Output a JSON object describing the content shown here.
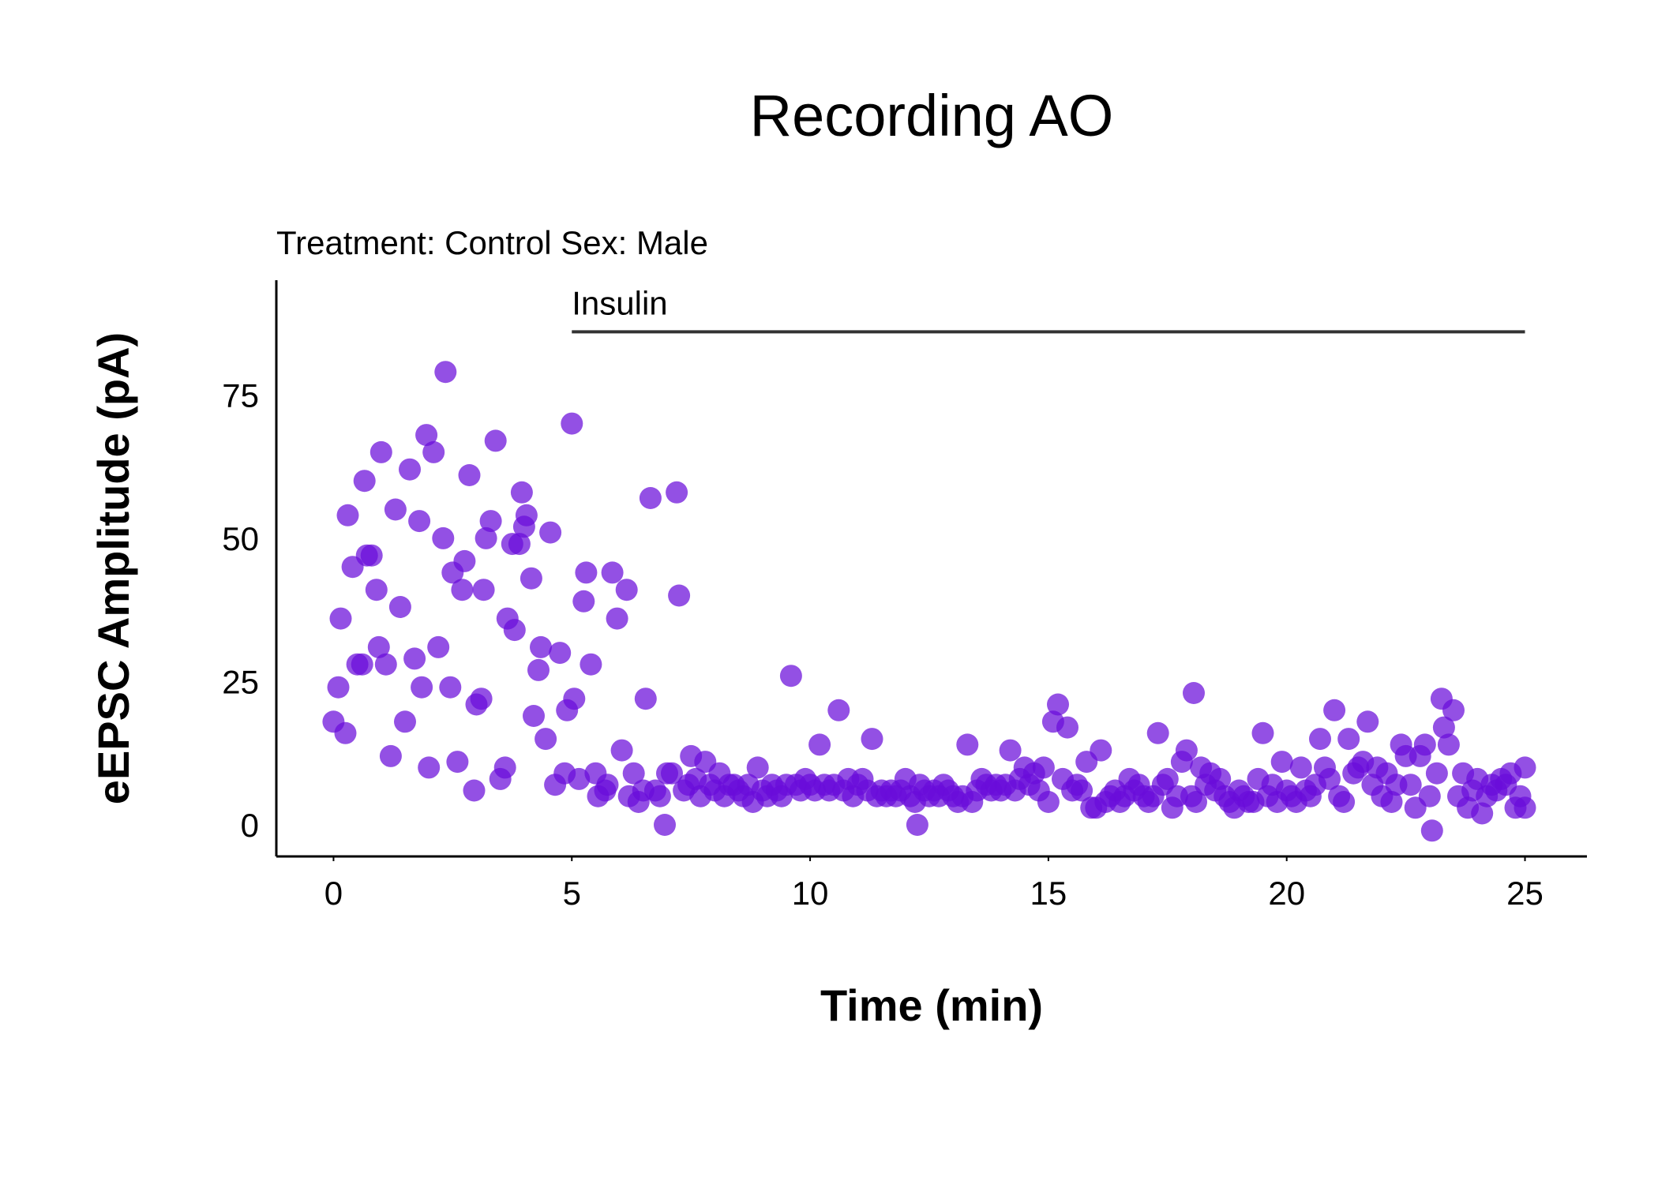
{
  "chart_data": {
    "type": "scatter",
    "title": "Recording AO",
    "subtitle": "Treatment: Control  Sex: Male",
    "xlabel": "Time (min)",
    "ylabel": "eEPSC Amplitude (pA)",
    "xlim": [
      -1.2,
      26.3
    ],
    "ylim": [
      -5.5,
      95
    ],
    "xticks": [
      0,
      5,
      10,
      15,
      20,
      25
    ],
    "yticks": [
      0,
      25,
      50,
      75
    ],
    "grid": false,
    "annotation": {
      "label": "Insulin",
      "x_start": 5,
      "x_end": 25,
      "y": 86
    },
    "point_color": "#6a0dd9",
    "points": [
      [
        0.0,
        18
      ],
      [
        0.1,
        24
      ],
      [
        0.15,
        36
      ],
      [
        0.25,
        16
      ],
      [
        0.3,
        54
      ],
      [
        0.4,
        45
      ],
      [
        0.5,
        28
      ],
      [
        0.6,
        28
      ],
      [
        0.65,
        60
      ],
      [
        0.7,
        47
      ],
      [
        0.8,
        47
      ],
      [
        0.9,
        41
      ],
      [
        0.95,
        31
      ],
      [
        1.0,
        65
      ],
      [
        1.1,
        28
      ],
      [
        1.2,
        12
      ],
      [
        1.3,
        55
      ],
      [
        1.4,
        38
      ],
      [
        1.5,
        18
      ],
      [
        1.6,
        62
      ],
      [
        1.7,
        29
      ],
      [
        1.8,
        53
      ],
      [
        1.85,
        24
      ],
      [
        1.95,
        68
      ],
      [
        2.0,
        10
      ],
      [
        2.1,
        65
      ],
      [
        2.2,
        31
      ],
      [
        2.3,
        50
      ],
      [
        2.35,
        79
      ],
      [
        2.45,
        24
      ],
      [
        2.5,
        44
      ],
      [
        2.6,
        11
      ],
      [
        2.7,
        41
      ],
      [
        2.75,
        46
      ],
      [
        2.85,
        61
      ],
      [
        2.95,
        6
      ],
      [
        3.0,
        21
      ],
      [
        3.1,
        22
      ],
      [
        3.15,
        41
      ],
      [
        3.2,
        50
      ],
      [
        3.3,
        53
      ],
      [
        3.4,
        67
      ],
      [
        3.5,
        8
      ],
      [
        3.6,
        10
      ],
      [
        3.65,
        36
      ],
      [
        3.75,
        49
      ],
      [
        3.8,
        34
      ],
      [
        3.9,
        49
      ],
      [
        3.95,
        58
      ],
      [
        4.0,
        52
      ],
      [
        4.05,
        54
      ],
      [
        4.15,
        43
      ],
      [
        4.2,
        19
      ],
      [
        4.3,
        27
      ],
      [
        4.35,
        31
      ],
      [
        4.45,
        15
      ],
      [
        4.55,
        51
      ],
      [
        4.65,
        7
      ],
      [
        4.75,
        30
      ],
      [
        4.85,
        9
      ],
      [
        4.9,
        20
      ],
      [
        5.0,
        70
      ],
      [
        5.05,
        22
      ],
      [
        5.15,
        8
      ],
      [
        5.25,
        39
      ],
      [
        5.3,
        44
      ],
      [
        5.4,
        28
      ],
      [
        5.5,
        9
      ],
      [
        5.55,
        5
      ],
      [
        5.7,
        6
      ],
      [
        5.75,
        7
      ],
      [
        5.85,
        44
      ],
      [
        5.95,
        36
      ],
      [
        6.05,
        13
      ],
      [
        6.15,
        41
      ],
      [
        6.2,
        5
      ],
      [
        6.3,
        9
      ],
      [
        6.4,
        4
      ],
      [
        6.5,
        6
      ],
      [
        6.55,
        22
      ],
      [
        6.65,
        57
      ],
      [
        6.75,
        6
      ],
      [
        6.85,
        5
      ],
      [
        6.95,
        0
      ],
      [
        7.0,
        9
      ],
      [
        7.1,
        9
      ],
      [
        7.2,
        58
      ],
      [
        7.25,
        40
      ],
      [
        7.35,
        6
      ],
      [
        7.45,
        7
      ],
      [
        7.5,
        12
      ],
      [
        7.6,
        8
      ],
      [
        7.7,
        5
      ],
      [
        7.8,
        11
      ],
      [
        7.9,
        7
      ],
      [
        8.0,
        6
      ],
      [
        8.1,
        9
      ],
      [
        8.2,
        5
      ],
      [
        8.3,
        7
      ],
      [
        8.4,
        7
      ],
      [
        8.5,
        6
      ],
      [
        8.6,
        5
      ],
      [
        8.7,
        7
      ],
      [
        8.8,
        4
      ],
      [
        8.9,
        10
      ],
      [
        9.0,
        6
      ],
      [
        9.1,
        5
      ],
      [
        9.2,
        7
      ],
      [
        9.3,
        6
      ],
      [
        9.4,
        5
      ],
      [
        9.5,
        7
      ],
      [
        9.6,
        26
      ],
      [
        9.7,
        7
      ],
      [
        9.8,
        6
      ],
      [
        9.9,
        8
      ],
      [
        10.0,
        7
      ],
      [
        10.1,
        6
      ],
      [
        10.2,
        14
      ],
      [
        10.3,
        7
      ],
      [
        10.4,
        6
      ],
      [
        10.5,
        7
      ],
      [
        10.6,
        20
      ],
      [
        10.7,
        6
      ],
      [
        10.8,
        8
      ],
      [
        10.9,
        5
      ],
      [
        11.0,
        7
      ],
      [
        11.1,
        8
      ],
      [
        11.2,
        6
      ],
      [
        11.3,
        15
      ],
      [
        11.4,
        5
      ],
      [
        11.5,
        6
      ],
      [
        11.6,
        5
      ],
      [
        11.7,
        6
      ],
      [
        11.8,
        5
      ],
      [
        11.9,
        6
      ],
      [
        12.0,
        8
      ],
      [
        12.1,
        5
      ],
      [
        12.2,
        4
      ],
      [
        12.25,
        0
      ],
      [
        12.3,
        7
      ],
      [
        12.4,
        6
      ],
      [
        12.5,
        5
      ],
      [
        12.6,
        6
      ],
      [
        12.7,
        5
      ],
      [
        12.8,
        7
      ],
      [
        12.9,
        6
      ],
      [
        13.0,
        5
      ],
      [
        13.1,
        4
      ],
      [
        13.2,
        5
      ],
      [
        13.3,
        14
      ],
      [
        13.4,
        4
      ],
      [
        13.5,
        6
      ],
      [
        13.6,
        8
      ],
      [
        13.7,
        7
      ],
      [
        13.8,
        6
      ],
      [
        13.9,
        7
      ],
      [
        14.0,
        6
      ],
      [
        14.1,
        7
      ],
      [
        14.2,
        13
      ],
      [
        14.3,
        6
      ],
      [
        14.4,
        8
      ],
      [
        14.5,
        10
      ],
      [
        14.6,
        7
      ],
      [
        14.7,
        9
      ],
      [
        14.8,
        6
      ],
      [
        14.9,
        10
      ],
      [
        15.0,
        4
      ],
      [
        15.1,
        18
      ],
      [
        15.2,
        21
      ],
      [
        15.3,
        8
      ],
      [
        15.4,
        17
      ],
      [
        15.5,
        6
      ],
      [
        15.6,
        7
      ],
      [
        15.7,
        6
      ],
      [
        15.8,
        11
      ],
      [
        15.9,
        3
      ],
      [
        16.0,
        3
      ],
      [
        16.1,
        13
      ],
      [
        16.2,
        4
      ],
      [
        16.3,
        5
      ],
      [
        16.4,
        6
      ],
      [
        16.5,
        4
      ],
      [
        16.6,
        5
      ],
      [
        16.7,
        8
      ],
      [
        16.8,
        6
      ],
      [
        16.9,
        7
      ],
      [
        17.0,
        5
      ],
      [
        17.1,
        4
      ],
      [
        17.2,
        5
      ],
      [
        17.3,
        16
      ],
      [
        17.4,
        7
      ],
      [
        17.5,
        8
      ],
      [
        17.6,
        3
      ],
      [
        17.7,
        5
      ],
      [
        17.8,
        11
      ],
      [
        17.9,
        13
      ],
      [
        18.0,
        5
      ],
      [
        18.05,
        23
      ],
      [
        18.1,
        4
      ],
      [
        18.2,
        10
      ],
      [
        18.3,
        7
      ],
      [
        18.4,
        9
      ],
      [
        18.5,
        6
      ],
      [
        18.6,
        8
      ],
      [
        18.7,
        5
      ],
      [
        18.8,
        4
      ],
      [
        18.9,
        3
      ],
      [
        19.0,
        6
      ],
      [
        19.1,
        5
      ],
      [
        19.2,
        4
      ],
      [
        19.3,
        4
      ],
      [
        19.4,
        8
      ],
      [
        19.5,
        16
      ],
      [
        19.6,
        5
      ],
      [
        19.7,
        7
      ],
      [
        19.8,
        4
      ],
      [
        19.9,
        11
      ],
      [
        20.0,
        6
      ],
      [
        20.1,
        5
      ],
      [
        20.2,
        4
      ],
      [
        20.3,
        10
      ],
      [
        20.4,
        6
      ],
      [
        20.5,
        5
      ],
      [
        20.6,
        7
      ],
      [
        20.7,
        15
      ],
      [
        20.8,
        10
      ],
      [
        20.9,
        8
      ],
      [
        21.0,
        20
      ],
      [
        21.1,
        5
      ],
      [
        21.2,
        4
      ],
      [
        21.3,
        15
      ],
      [
        21.4,
        9
      ],
      [
        21.5,
        10
      ],
      [
        21.6,
        11
      ],
      [
        21.7,
        18
      ],
      [
        21.8,
        7
      ],
      [
        21.9,
        10
      ],
      [
        22.0,
        5
      ],
      [
        22.1,
        9
      ],
      [
        22.2,
        4
      ],
      [
        22.3,
        7
      ],
      [
        22.4,
        14
      ],
      [
        22.5,
        12
      ],
      [
        22.6,
        7
      ],
      [
        22.7,
        3
      ],
      [
        22.8,
        12
      ],
      [
        22.9,
        14
      ],
      [
        23.0,
        5
      ],
      [
        23.05,
        -1
      ],
      [
        23.15,
        9
      ],
      [
        23.25,
        22
      ],
      [
        23.3,
        17
      ],
      [
        23.4,
        14
      ],
      [
        23.5,
        20
      ],
      [
        23.6,
        5
      ],
      [
        23.7,
        9
      ],
      [
        23.8,
        3
      ],
      [
        23.9,
        6
      ],
      [
        24.0,
        8
      ],
      [
        24.1,
        2
      ],
      [
        24.2,
        5
      ],
      [
        24.3,
        7
      ],
      [
        24.4,
        6
      ],
      [
        24.5,
        8
      ],
      [
        24.6,
        7
      ],
      [
        24.7,
        9
      ],
      [
        24.8,
        3
      ],
      [
        24.9,
        5
      ],
      [
        25.0,
        3
      ],
      [
        25.0,
        10
      ]
    ]
  }
}
